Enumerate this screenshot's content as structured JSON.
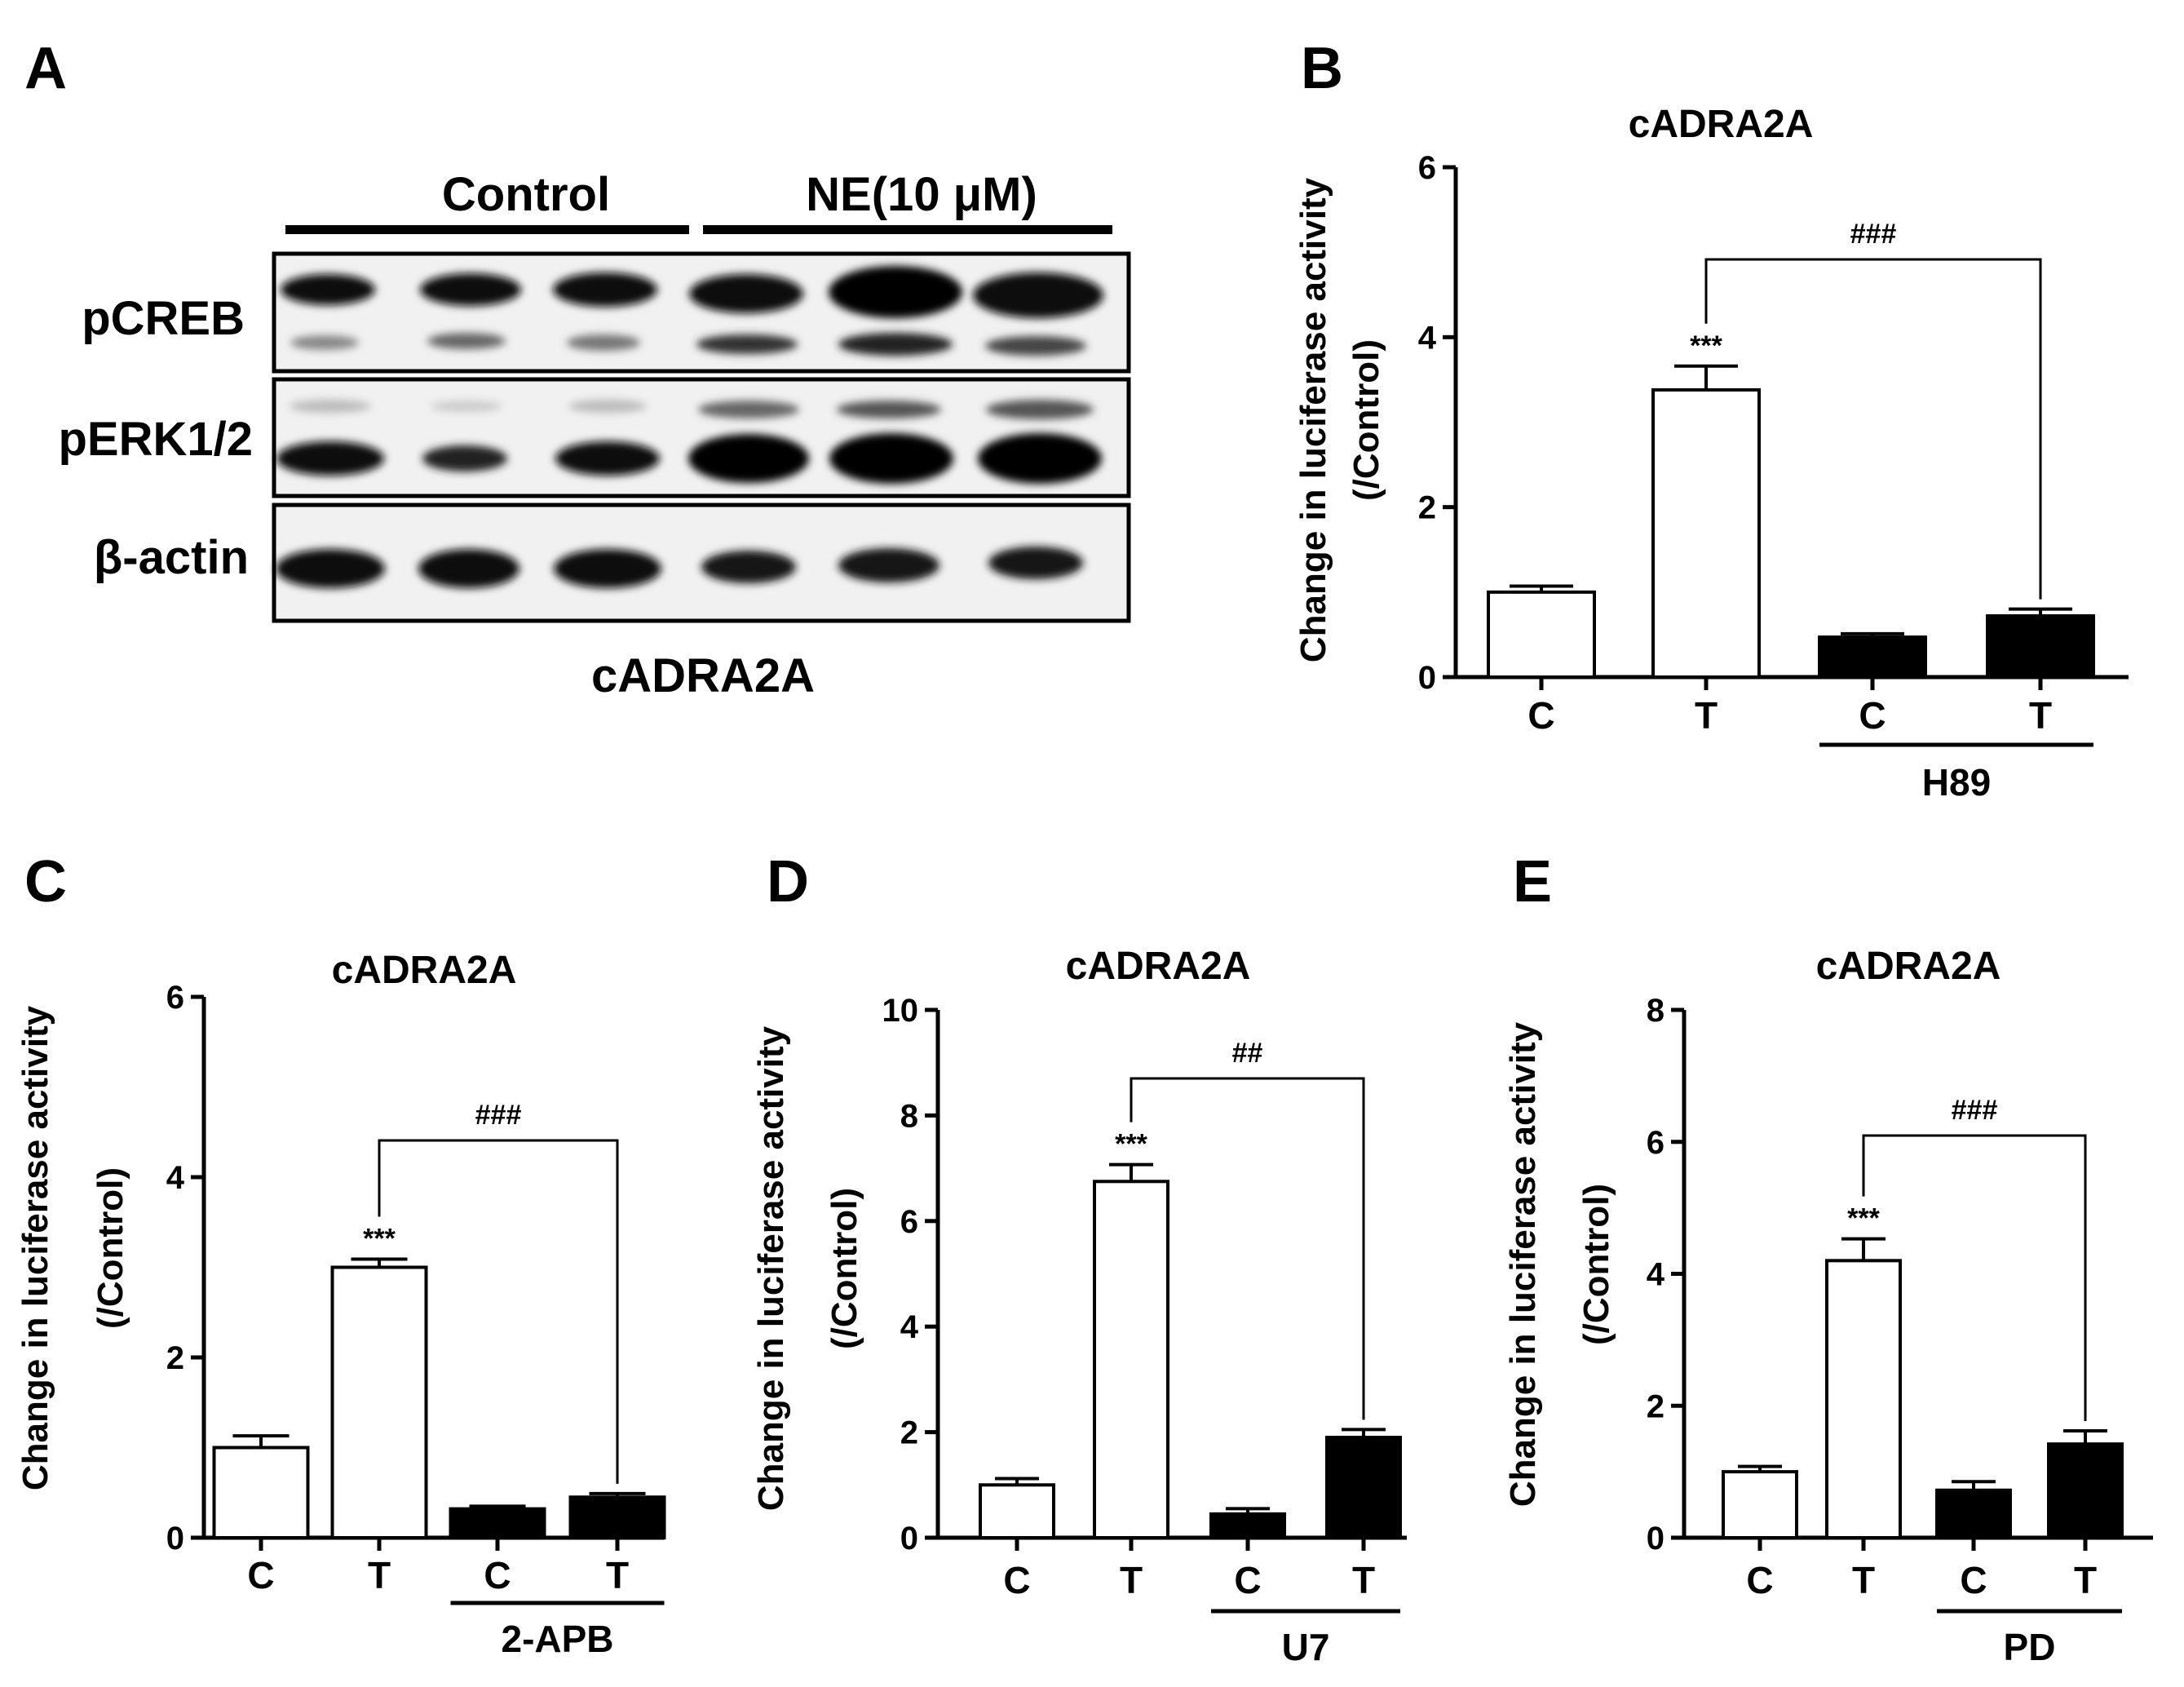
{
  "panel_A": {
    "letter": "A",
    "group_labels": [
      "Control",
      "NE(10 μM)"
    ],
    "row_labels": [
      "pCREB",
      "pERK1/2",
      "β-actin"
    ],
    "caption": "cADRA2A"
  },
  "chart_data": [
    {
      "panel": "B",
      "type": "bar",
      "title": "cADRA2A",
      "ylabel": "Change in luciferase activity\n(/Control)",
      "ylim": [
        0,
        6
      ],
      "yticks": [
        0,
        2,
        4,
        6
      ],
      "categories": [
        "C",
        "T",
        "C",
        "T"
      ],
      "values": [
        1.0,
        3.38,
        0.47,
        0.72
      ],
      "errors": [
        0.07,
        0.28,
        0.04,
        0.08
      ],
      "fills": [
        "#ffffff",
        "#ffffff",
        "#000000",
        "#000000"
      ],
      "treatment": "H89",
      "significance_star": "***",
      "comparison_mark": "###"
    },
    {
      "panel": "C",
      "type": "bar",
      "title": "cADRA2A",
      "ylabel": "Change in luciferase activity\n(/Control)",
      "ylim": [
        0,
        6
      ],
      "yticks": [
        0,
        2,
        4,
        6
      ],
      "categories": [
        "C",
        "T",
        "C",
        "T"
      ],
      "values": [
        1.0,
        3.0,
        0.32,
        0.45
      ],
      "errors": [
        0.13,
        0.09,
        0.03,
        0.04
      ],
      "fills": [
        "#ffffff",
        "#ffffff",
        "#000000",
        "#000000"
      ],
      "treatment": "2-APB",
      "significance_star": "***",
      "comparison_mark": "###"
    },
    {
      "panel": "D",
      "type": "bar",
      "title": "cADRA2A",
      "ylabel": "Change in luciferase activity\n(/Control)",
      "ylim": [
        0,
        10
      ],
      "yticks": [
        0,
        2,
        4,
        6,
        8,
        10
      ],
      "categories": [
        "C",
        "T",
        "C",
        "T"
      ],
      "values": [
        1.0,
        6.75,
        0.45,
        1.9
      ],
      "errors": [
        0.12,
        0.32,
        0.1,
        0.15
      ],
      "fills": [
        "#ffffff",
        "#ffffff",
        "#000000",
        "#000000"
      ],
      "treatment": "U7",
      "significance_star": "***",
      "comparison_mark": "##"
    },
    {
      "panel": "E",
      "type": "bar",
      "title": "cADRA2A",
      "ylabel": "Change in luciferase activity\n(/Control)",
      "ylim": [
        0,
        8
      ],
      "yticks": [
        0,
        2,
        4,
        6,
        8
      ],
      "categories": [
        "C",
        "T",
        "C",
        "T"
      ],
      "values": [
        1.0,
        4.2,
        0.72,
        1.42
      ],
      "errors": [
        0.08,
        0.33,
        0.13,
        0.2
      ],
      "fills": [
        "#ffffff",
        "#ffffff",
        "#000000",
        "#000000"
      ],
      "treatment": "PD",
      "significance_star": "***",
      "comparison_mark": "###"
    }
  ]
}
